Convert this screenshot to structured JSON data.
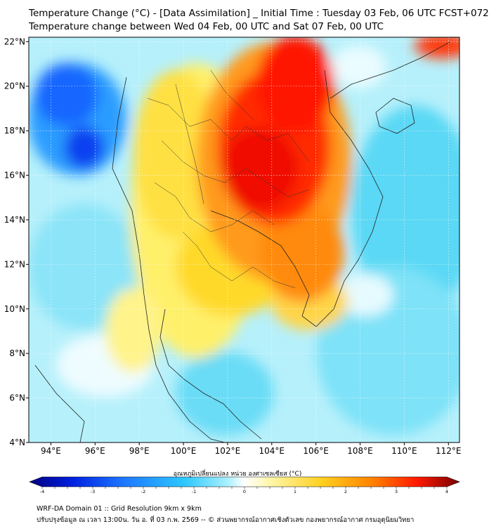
{
  "header": {
    "title_line1": "Temperature Change (°C) - [Data Assimilation] _ Initial Time : Tuesday 03 Feb, 06 UTC FCST+072",
    "title_line2": "Temperature change between Wed 04 Feb, 00 UTC and Sat 07 Feb, 00 UTC"
  },
  "map": {
    "lon_ticks": [
      "94°E",
      "96°E",
      "98°E",
      "100°E",
      "102°E",
      "104°E",
      "106°E",
      "108°E",
      "110°E",
      "112°E"
    ],
    "lon_values": [
      94,
      96,
      98,
      100,
      102,
      104,
      106,
      108,
      110,
      112
    ],
    "lat_ticks": [
      "22°N",
      "20°N",
      "18°N",
      "16°N",
      "14°N",
      "12°N",
      "10°N",
      "8°N",
      "6°N",
      "4°N"
    ],
    "lat_values": [
      22,
      20,
      18,
      16,
      14,
      12,
      10,
      8,
      6,
      4
    ],
    "lon_range": [
      93,
      112.5
    ],
    "lat_range": [
      4,
      22.2
    ]
  },
  "colorbar": {
    "label": "อุณหภูมิเปลี่ยนแปลง หน่วย องศาเซลเซียส (°C)",
    "ticks": [
      "-4",
      "-3",
      "-2",
      "-1",
      "0",
      "1",
      "2",
      "3",
      "4"
    ],
    "tick_values": [
      -4,
      -3,
      -2,
      -1,
      0,
      1,
      2,
      3,
      4
    ],
    "colors": [
      "#00007f",
      "#0020e0",
      "#1e78ff",
      "#2dc8ff",
      "#a8f0ff",
      "#ffffff",
      "#fff6a8",
      "#ffd020",
      "#ff8000",
      "#ff1a00",
      "#7a0000"
    ]
  },
  "footer": {
    "line1": "WRF-DA Domain 01 :: Grid Resolution 9km x 9km",
    "line2": "ปรับปรุงข้อมูล ณ เวลา 13:00น. วัน อ. ที่ 03 ก.พ. 2569 -- © ส่วนพยากรณ์อากาศเชิงตัวเลข กองพยากรณ์อากาศ กรมอุตุนิยมวิทยา"
  }
}
